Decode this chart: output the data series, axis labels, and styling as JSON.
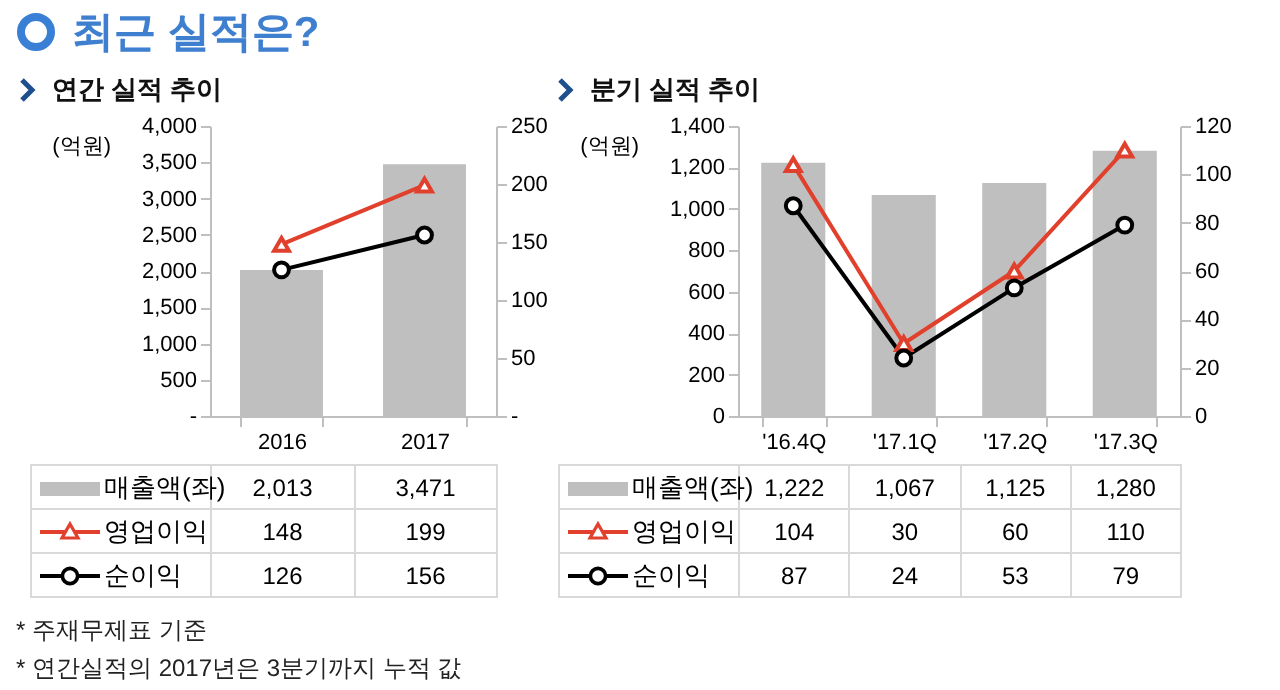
{
  "chart_data": [
    {
      "type": "bar",
      "title": "연간 실적 추이",
      "ylabel": "(억원)",
      "categories": [
        "2016",
        "2017"
      ],
      "series": [
        {
          "name": "매출액(좌)",
          "color": "#bfbfbf",
          "values": [
            2013,
            3471
          ],
          "value_labels": [
            "2,013",
            "3,471"
          ]
        },
        {
          "name": "영업이익",
          "type": "line",
          "axis": "y2",
          "color": "#e0402c",
          "marker": "triangle",
          "values": [
            148,
            199
          ],
          "value_labels": [
            "148",
            "199"
          ]
        },
        {
          "name": "순이익",
          "type": "line",
          "axis": "y2",
          "color": "#000000",
          "marker": "circle",
          "values": [
            126,
            156
          ],
          "value_labels": [
            "126",
            "156"
          ]
        }
      ],
      "ylim": [
        0,
        4000
      ],
      "yticks": [
        {
          "value": 0,
          "label": "-"
        },
        500,
        {
          "value": 1000,
          "label": "1,000"
        },
        {
          "value": 1500,
          "label": "1,500"
        },
        {
          "value": 2000,
          "label": "2,000"
        },
        {
          "value": 2500,
          "label": "2,500"
        },
        {
          "value": 3000,
          "label": "3,000"
        },
        {
          "value": 3500,
          "label": "3,500"
        },
        {
          "value": 4000,
          "label": "4,000"
        }
      ],
      "y2lim": [
        0,
        250
      ],
      "y2ticks": [
        {
          "value": 0,
          "label": "-"
        },
        50,
        100,
        150,
        200,
        250
      ],
      "legend": "bottom",
      "grid": false,
      "annotations": [
        "최근 실적은?",
        "* 주재무제표 기준",
        "* 연간실적의 2017년은 3분기까지 누적 값"
      ]
    },
    {
      "type": "bar",
      "title": "분기 실적 추이",
      "ylabel": "(억원)",
      "categories": [
        "'16.4Q",
        "'17.1Q",
        "'17.2Q",
        "'17.3Q"
      ],
      "series": [
        {
          "name": "매출액(좌)",
          "color": "#bfbfbf",
          "values": [
            1222,
            1067,
            1125,
            1280
          ],
          "value_labels": [
            "1,222",
            "1,067",
            "1,125",
            "1,280"
          ]
        },
        {
          "name": "영업이익",
          "type": "line",
          "axis": "y2",
          "color": "#e0402c",
          "marker": "triangle",
          "values": [
            104,
            30,
            60,
            110
          ],
          "value_labels": [
            "104",
            "30",
            "60",
            "110"
          ]
        },
        {
          "name": "순이익",
          "type": "line",
          "axis": "y2",
          "color": "#000000",
          "marker": "circle",
          "values": [
            87,
            24,
            53,
            79
          ],
          "value_labels": [
            "87",
            "24",
            "53",
            "79"
          ]
        }
      ],
      "ylim": [
        0,
        1400
      ],
      "yticks": [
        0,
        200,
        400,
        600,
        800,
        {
          "value": 1000,
          "label": "1,000"
        },
        {
          "value": 1200,
          "label": "1,200"
        },
        {
          "value": 1400,
          "label": "1,400"
        }
      ],
      "y2lim": [
        0,
        120
      ],
      "y2ticks": [
        0,
        20,
        40,
        60,
        80,
        100,
        120
      ],
      "legend": "bottom",
      "grid": false
    }
  ]
}
